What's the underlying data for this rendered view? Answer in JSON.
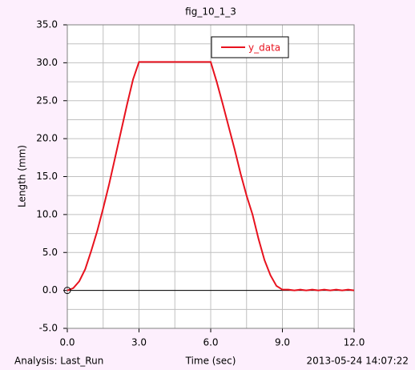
{
  "chart_data": {
    "type": "line",
    "title": "fig_10_1_3",
    "xlabel": "Time (sec)",
    "ylabel": "Length (mm)",
    "footer_left": "Analysis:  Last_Run",
    "footer_right": "2013-05-24 14:07:22",
    "xlim": [
      0,
      12
    ],
    "ylim": [
      -5,
      35
    ],
    "xticks": [
      {
        "value": 0,
        "label": "0.0"
      },
      {
        "value": 3,
        "label": "3.0"
      },
      {
        "value": 6,
        "label": "6.0"
      },
      {
        "value": 9,
        "label": "9.0"
      },
      {
        "value": 12,
        "label": "12.0"
      }
    ],
    "yticks": [
      {
        "value": -5,
        "label": "-5.0"
      },
      {
        "value": 0,
        "label": "0.0"
      },
      {
        "value": 5,
        "label": "5.0"
      },
      {
        "value": 10,
        "label": "10.0"
      },
      {
        "value": 15,
        "label": "15.0"
      },
      {
        "value": 20,
        "label": "20.0"
      },
      {
        "value": 25,
        "label": "25.0"
      },
      {
        "value": 30,
        "label": "30.0"
      },
      {
        "value": 35,
        "label": "35.0"
      }
    ],
    "grid": true,
    "legend": "upper right",
    "x": [
      0,
      0.25,
      0.5,
      0.75,
      1,
      1.25,
      1.5,
      1.75,
      2,
      2.25,
      2.5,
      2.75,
      3,
      3.25,
      3.5,
      3.75,
      4,
      4.25,
      4.5,
      4.75,
      5,
      5.25,
      5.5,
      5.75,
      6,
      6.25,
      6.5,
      6.75,
      7,
      7.25,
      7.5,
      7.75,
      8,
      8.25,
      8.5,
      8.75,
      9,
      9.25,
      9.5,
      9.75,
      10,
      10.25,
      10.5,
      10.75,
      11,
      11.25,
      11.5,
      11.75,
      12
    ],
    "series": [
      {
        "name": "y_data",
        "color": "#e8121e",
        "values": [
          0,
          0.3,
          1.2,
          2.8,
          5.2,
          7.8,
          10.8,
          14.0,
          17.5,
          21.0,
          24.5,
          27.8,
          30.1,
          30.1,
          30.1,
          30.1,
          30.1,
          30.1,
          30.1,
          30.1,
          30.1,
          30.1,
          30.1,
          30.1,
          30.1,
          27.5,
          24.6,
          21.6,
          18.6,
          15.4,
          12.5,
          10.0,
          6.8,
          4.0,
          2.0,
          0.6,
          0.1,
          0.1,
          0,
          0.1,
          0,
          0.1,
          0,
          0.1,
          0,
          0.1,
          0,
          0.1,
          0
        ]
      }
    ]
  }
}
